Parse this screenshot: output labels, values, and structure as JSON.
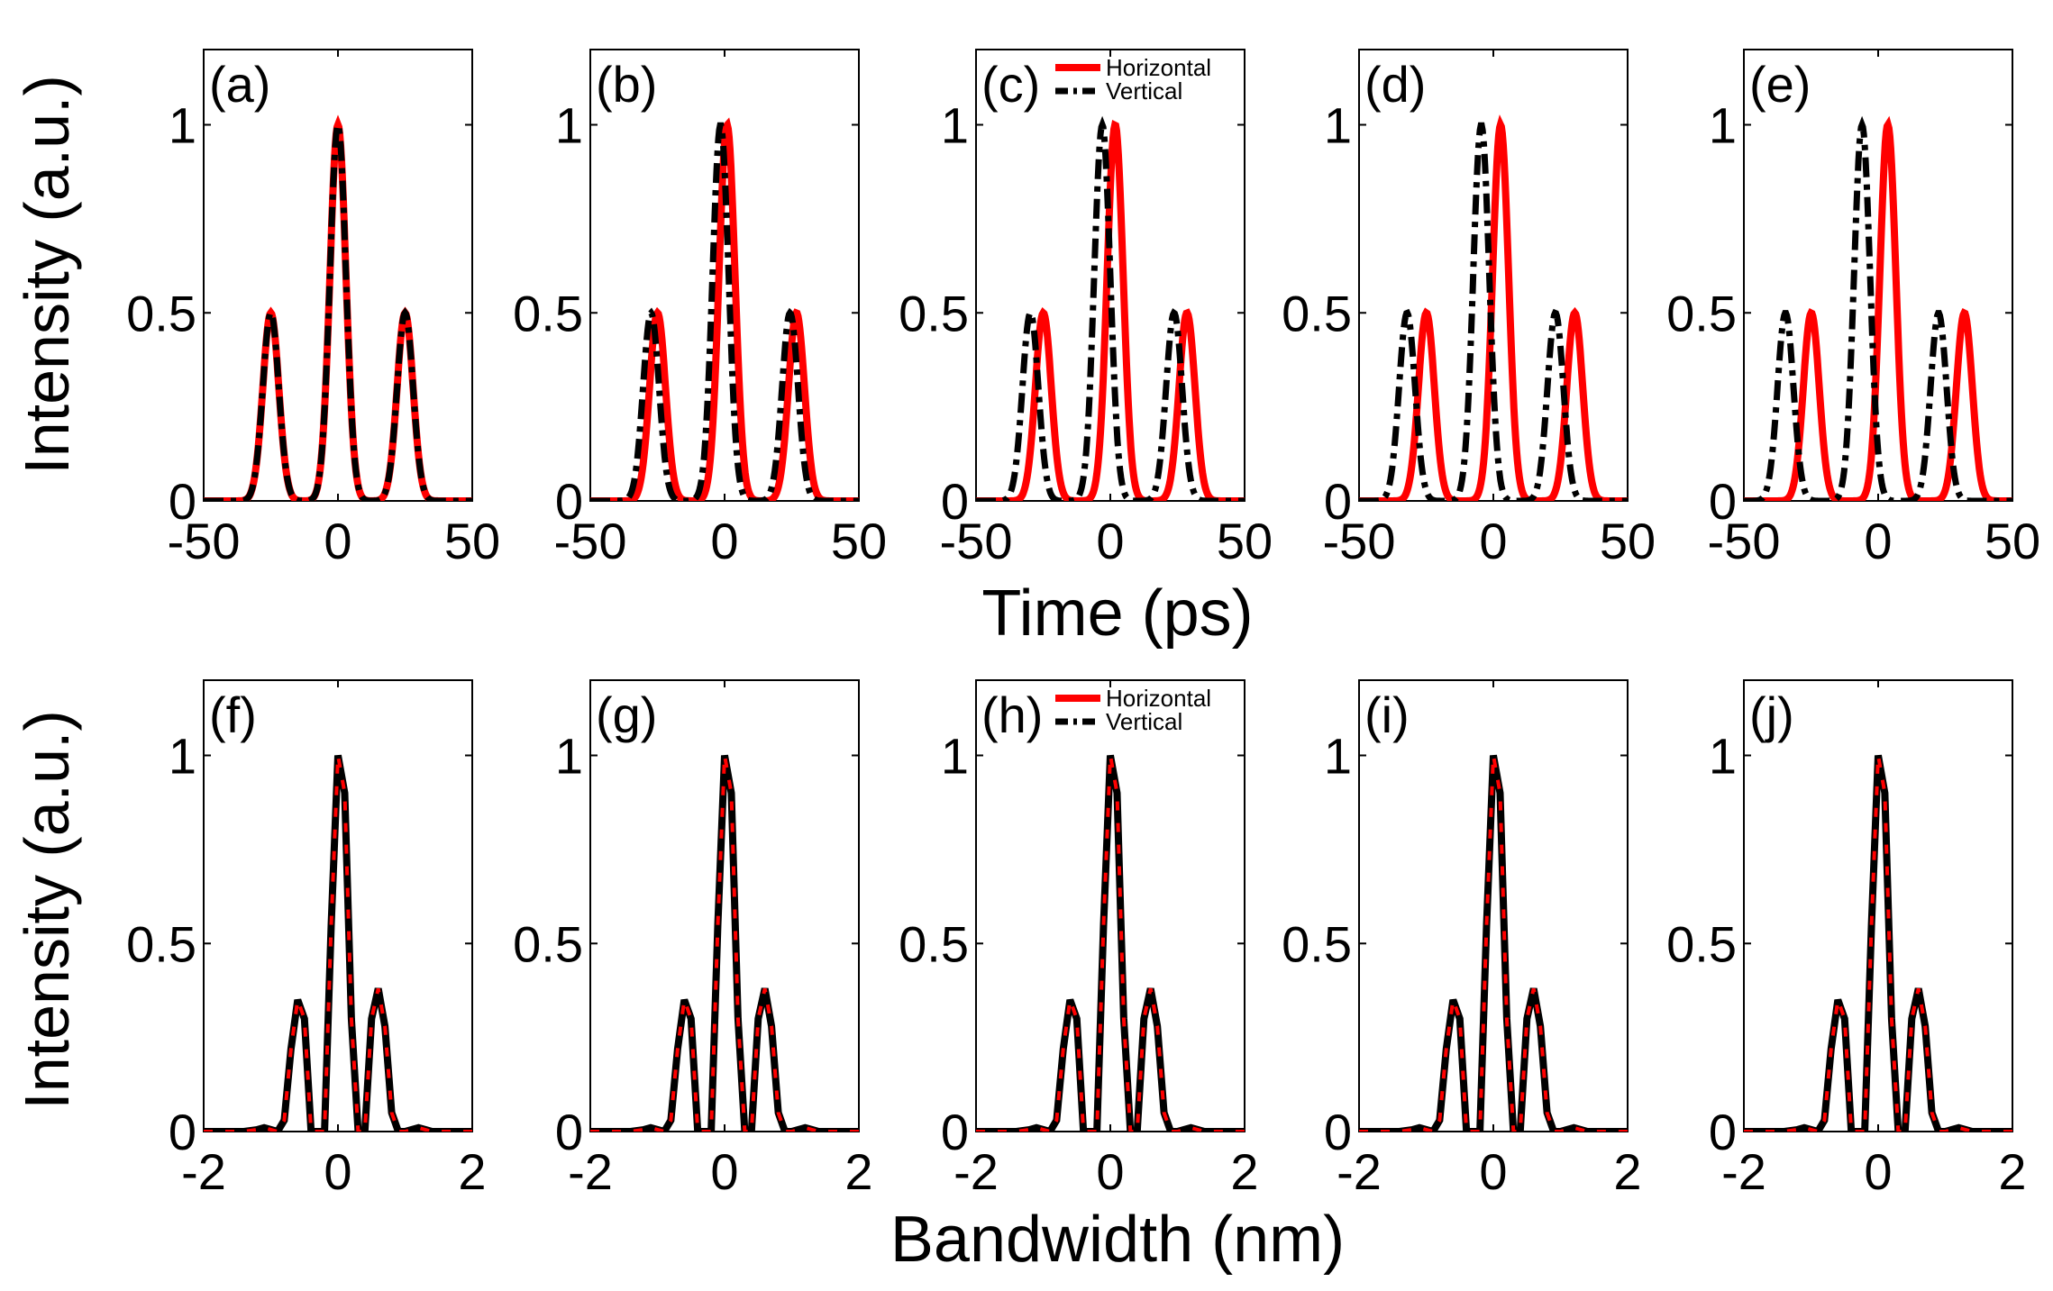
{
  "figure": {
    "row1_ylabel": "Intensity (a.u.)",
    "row2_ylabel": "Intensity (a.u.)",
    "row1_xlabel": "Time (ps)",
    "row2_xlabel": "Bandwidth (nm)"
  },
  "colors": {
    "horizontal": "#ff0000",
    "vertical": "#000000"
  },
  "legend": {
    "horizontal": "Horizontal",
    "vertical": "Vertical"
  },
  "chart_data": [
    {
      "panel_label": "(a)",
      "type": "line",
      "row": "time",
      "xlim": [
        -50,
        50
      ],
      "ylim": [
        0,
        1.2
      ],
      "xticks": [
        -50,
        0,
        50
      ],
      "yticks": [
        0,
        0.5,
        1
      ],
      "shift": 0
    },
    {
      "panel_label": "(b)",
      "type": "line",
      "row": "time",
      "xlim": [
        -50,
        50
      ],
      "ylim": [
        0,
        1.2
      ],
      "xticks": [
        -50,
        0,
        50
      ],
      "yticks": [
        0,
        0.5,
        1
      ],
      "shift": 1
    },
    {
      "panel_label": "(c)",
      "type": "line",
      "row": "time",
      "xlim": [
        -50,
        50
      ],
      "ylim": [
        0,
        1.2
      ],
      "xticks": [
        -50,
        0,
        50
      ],
      "yticks": [
        0,
        0.5,
        1
      ],
      "shift": 2,
      "legend": true
    },
    {
      "panel_label": "(d)",
      "type": "line",
      "row": "time",
      "xlim": [
        -50,
        50
      ],
      "ylim": [
        0,
        1.2
      ],
      "xticks": [
        -50,
        0,
        50
      ],
      "yticks": [
        0,
        0.5,
        1
      ],
      "shift": 3
    },
    {
      "panel_label": "(e)",
      "type": "line",
      "row": "time",
      "xlim": [
        -50,
        50
      ],
      "ylim": [
        0,
        1.2
      ],
      "xticks": [
        -50,
        0,
        50
      ],
      "yticks": [
        0,
        0.5,
        1
      ],
      "shift": 4
    },
    {
      "panel_label": "(f)",
      "type": "line",
      "row": "spectrum",
      "xlim": [
        -2,
        2
      ],
      "ylim": [
        0,
        1.2
      ],
      "xticks": [
        -2,
        0,
        2
      ],
      "yticks": [
        0,
        0.5,
        1
      ]
    },
    {
      "panel_label": "(g)",
      "type": "line",
      "row": "spectrum",
      "xlim": [
        -2,
        2
      ],
      "ylim": [
        0,
        1.2
      ],
      "xticks": [
        -2,
        0,
        2
      ],
      "yticks": [
        0,
        0.5,
        1
      ]
    },
    {
      "panel_label": "(h)",
      "type": "line",
      "row": "spectrum",
      "xlim": [
        -2,
        2
      ],
      "ylim": [
        0,
        1.2
      ],
      "xticks": [
        -2,
        0,
        2
      ],
      "yticks": [
        0,
        0.5,
        1
      ],
      "legend": true
    },
    {
      "panel_label": "(i)",
      "type": "line",
      "row": "spectrum",
      "xlim": [
        -2,
        2
      ],
      "ylim": [
        0,
        1.2
      ],
      "xticks": [
        -2,
        0,
        2
      ],
      "yticks": [
        0,
        0.5,
        1
      ]
    },
    {
      "panel_label": "(j)",
      "type": "line",
      "row": "spectrum",
      "xlim": [
        -2,
        2
      ],
      "ylim": [
        0,
        1.2
      ],
      "xticks": [
        -2,
        0,
        2
      ],
      "yticks": [
        0,
        0.5,
        1
      ]
    }
  ],
  "time_pulses": [
    {
      "center": -25,
      "amplitude": 0.5,
      "width": 4.2
    },
    {
      "center": 0,
      "amplitude": 1.0,
      "width": 4.2
    },
    {
      "center": 25,
      "amplitude": 0.5,
      "width": 4.2
    }
  ],
  "spectrum": {
    "x": [
      -2,
      -1.4,
      -1.2,
      -1.1,
      -1.0,
      -0.9,
      -0.8,
      -0.7,
      -0.6,
      -0.5,
      -0.4,
      -0.3,
      -0.2,
      -0.1,
      0,
      0.1,
      0.2,
      0.3,
      0.4,
      0.5,
      0.6,
      0.7,
      0.8,
      0.9,
      1.0,
      1.1,
      1.2,
      1.3,
      1.4,
      2
    ],
    "y": [
      0,
      0,
      0.005,
      0.01,
      0.005,
      0,
      0.03,
      0.22,
      0.35,
      0.3,
      0,
      0,
      0,
      0.55,
      1.0,
      0.9,
      0.3,
      0,
      0,
      0.3,
      0.38,
      0.28,
      0.05,
      0,
      0,
      0.005,
      0.01,
      0.005,
      0,
      0
    ]
  }
}
